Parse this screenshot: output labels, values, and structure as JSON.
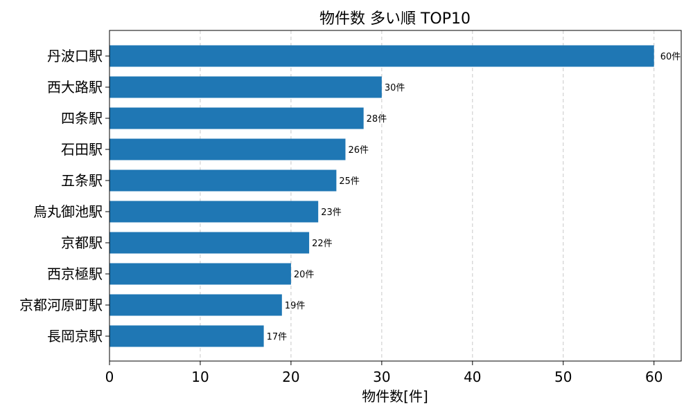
{
  "chart_data": {
    "type": "bar",
    "orientation": "horizontal",
    "title": "物件数 多い順 TOP10",
    "xlabel": "物件数[件]",
    "ylabel": "",
    "categories": [
      "丹波口駅",
      "西大路駅",
      "四条駅",
      "石田駅",
      "五条駅",
      "烏丸御池駅",
      "京都駅",
      "西京極駅",
      "京都河原町駅",
      "長岡京駅"
    ],
    "values": [
      60,
      30,
      28,
      26,
      25,
      23,
      22,
      20,
      19,
      17
    ],
    "value_suffix": "件",
    "xlim": [
      0,
      63
    ],
    "x_ticks": [
      0,
      10,
      20,
      30,
      40,
      50,
      60
    ],
    "grid": "x-dashed",
    "bar_color": "#1f77b4"
  }
}
